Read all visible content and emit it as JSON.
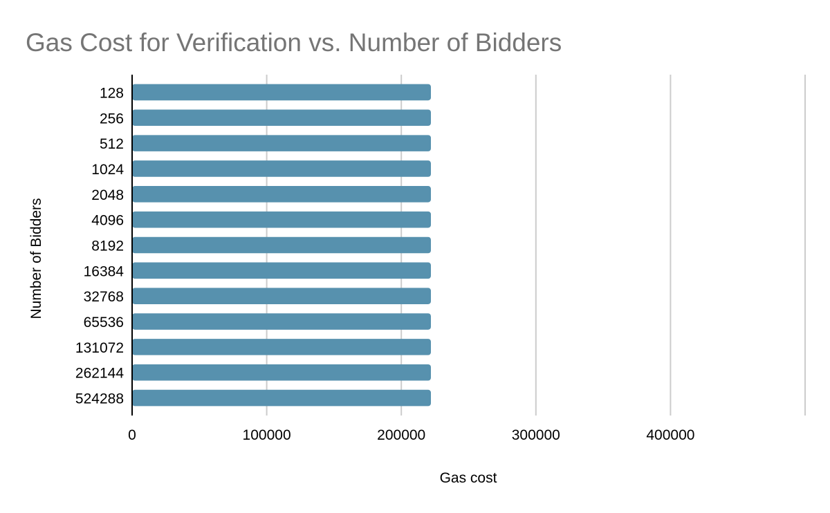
{
  "chart_data": {
    "type": "bar",
    "orientation": "horizontal",
    "title": "Gas Cost for Verification vs. Number of Bidders",
    "xlabel": "Gas cost",
    "ylabel": "Number of Bidders",
    "categories": [
      "128",
      "256",
      "512",
      "1024",
      "2048",
      "4096",
      "8192",
      "16384",
      "32768",
      "65536",
      "131072",
      "262144",
      "524288"
    ],
    "values": [
      222000,
      222000,
      222000,
      222000,
      222000,
      222000,
      222000,
      222000,
      222000,
      222000,
      222000,
      222000,
      222000
    ],
    "xlim": [
      0,
      500000
    ],
    "xticks": [
      "0",
      "100000",
      "200000",
      "300000",
      "400000"
    ],
    "xtick_values": [
      0,
      100000,
      200000,
      300000,
      400000
    ],
    "grid": true,
    "legend": "none",
    "colors": {
      "bar": "#5791ae",
      "title": "#757575",
      "grid": "#cccccc",
      "text": "#000000"
    }
  }
}
